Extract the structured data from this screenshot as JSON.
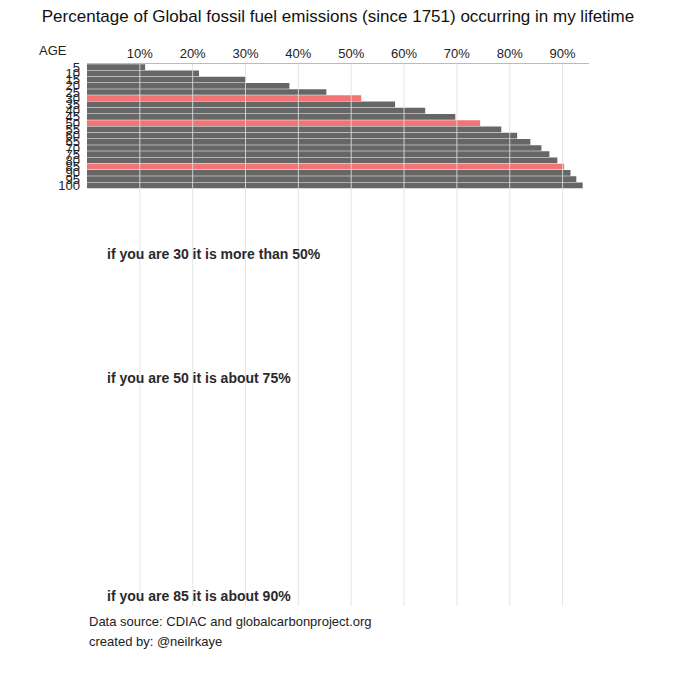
{
  "chart_data": {
    "type": "bar",
    "orientation": "horizontal",
    "title": "Percentage of Global fossil fuel emissions (since 1751) occurring in my lifetime",
    "ylabel": "AGE",
    "categories": [
      "5",
      "10",
      "15",
      "20",
      "25",
      "30",
      "35",
      "40",
      "45",
      "50",
      "55",
      "60",
      "65",
      "70",
      "75",
      "80",
      "85",
      "90",
      "95",
      "100"
    ],
    "values": [
      11.0,
      21.2,
      30.1,
      38.3,
      45.3,
      51.9,
      58.3,
      64.0,
      69.7,
      74.4,
      78.4,
      81.4,
      83.9,
      86.0,
      87.5,
      89.0,
      90.3,
      91.5,
      92.6,
      93.8
    ],
    "colors": [
      "#666666",
      "#666666",
      "#666666",
      "#666666",
      "#666666",
      "#f27474",
      "#666666",
      "#666666",
      "#666666",
      "#f27474",
      "#666666",
      "#666666",
      "#666666",
      "#666666",
      "#666666",
      "#666666",
      "#f27474",
      "#666666",
      "#666666",
      "#666666"
    ],
    "xlim": [
      0,
      95
    ],
    "xticks": [
      {
        "value": 10,
        "label": "10%"
      },
      {
        "value": 20,
        "label": "20%"
      },
      {
        "value": 30,
        "label": "30%"
      },
      {
        "value": 40,
        "label": "40%"
      },
      {
        "value": 50,
        "label": "50%"
      },
      {
        "value": 60,
        "label": "60%"
      },
      {
        "value": 70,
        "label": "70%"
      },
      {
        "value": 80,
        "label": "80%"
      },
      {
        "value": 90,
        "label": "90%"
      }
    ],
    "grid": true,
    "annotations": [
      {
        "category": "30",
        "text": "if you are 30 it is more than 50%"
      },
      {
        "category": "50",
        "text": "if you are 50 it is about 75%"
      },
      {
        "category": "85",
        "text": "if you are 85 it is about 90%"
      }
    ],
    "caption": [
      "Data source: CDIAC and globalcarbonproject.org",
      "created by: @neilrkaye"
    ]
  }
}
